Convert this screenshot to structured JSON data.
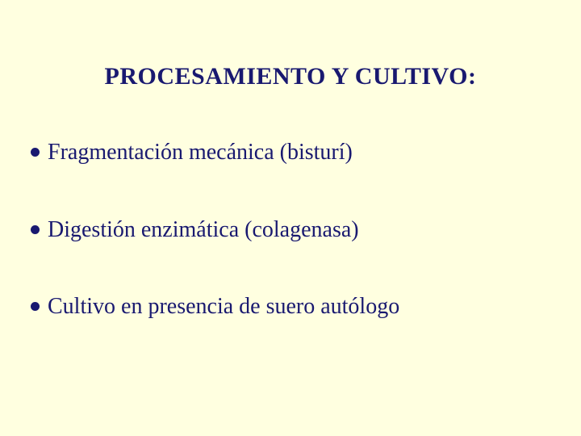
{
  "slide": {
    "background_color": "#ffffe0",
    "text_color": "#191970",
    "bullet_color": "#191970",
    "title_fontsize": 30,
    "body_fontsize": 28,
    "font_family": "Times New Roman",
    "title": "PROCESAMIENTO Y CULTIVO:",
    "bullets": [
      "Fragmentación mecánica (bisturí)",
      "Digestión enzimática (colagenasa)",
      "Cultivo en presencia de suero autólogo"
    ]
  }
}
